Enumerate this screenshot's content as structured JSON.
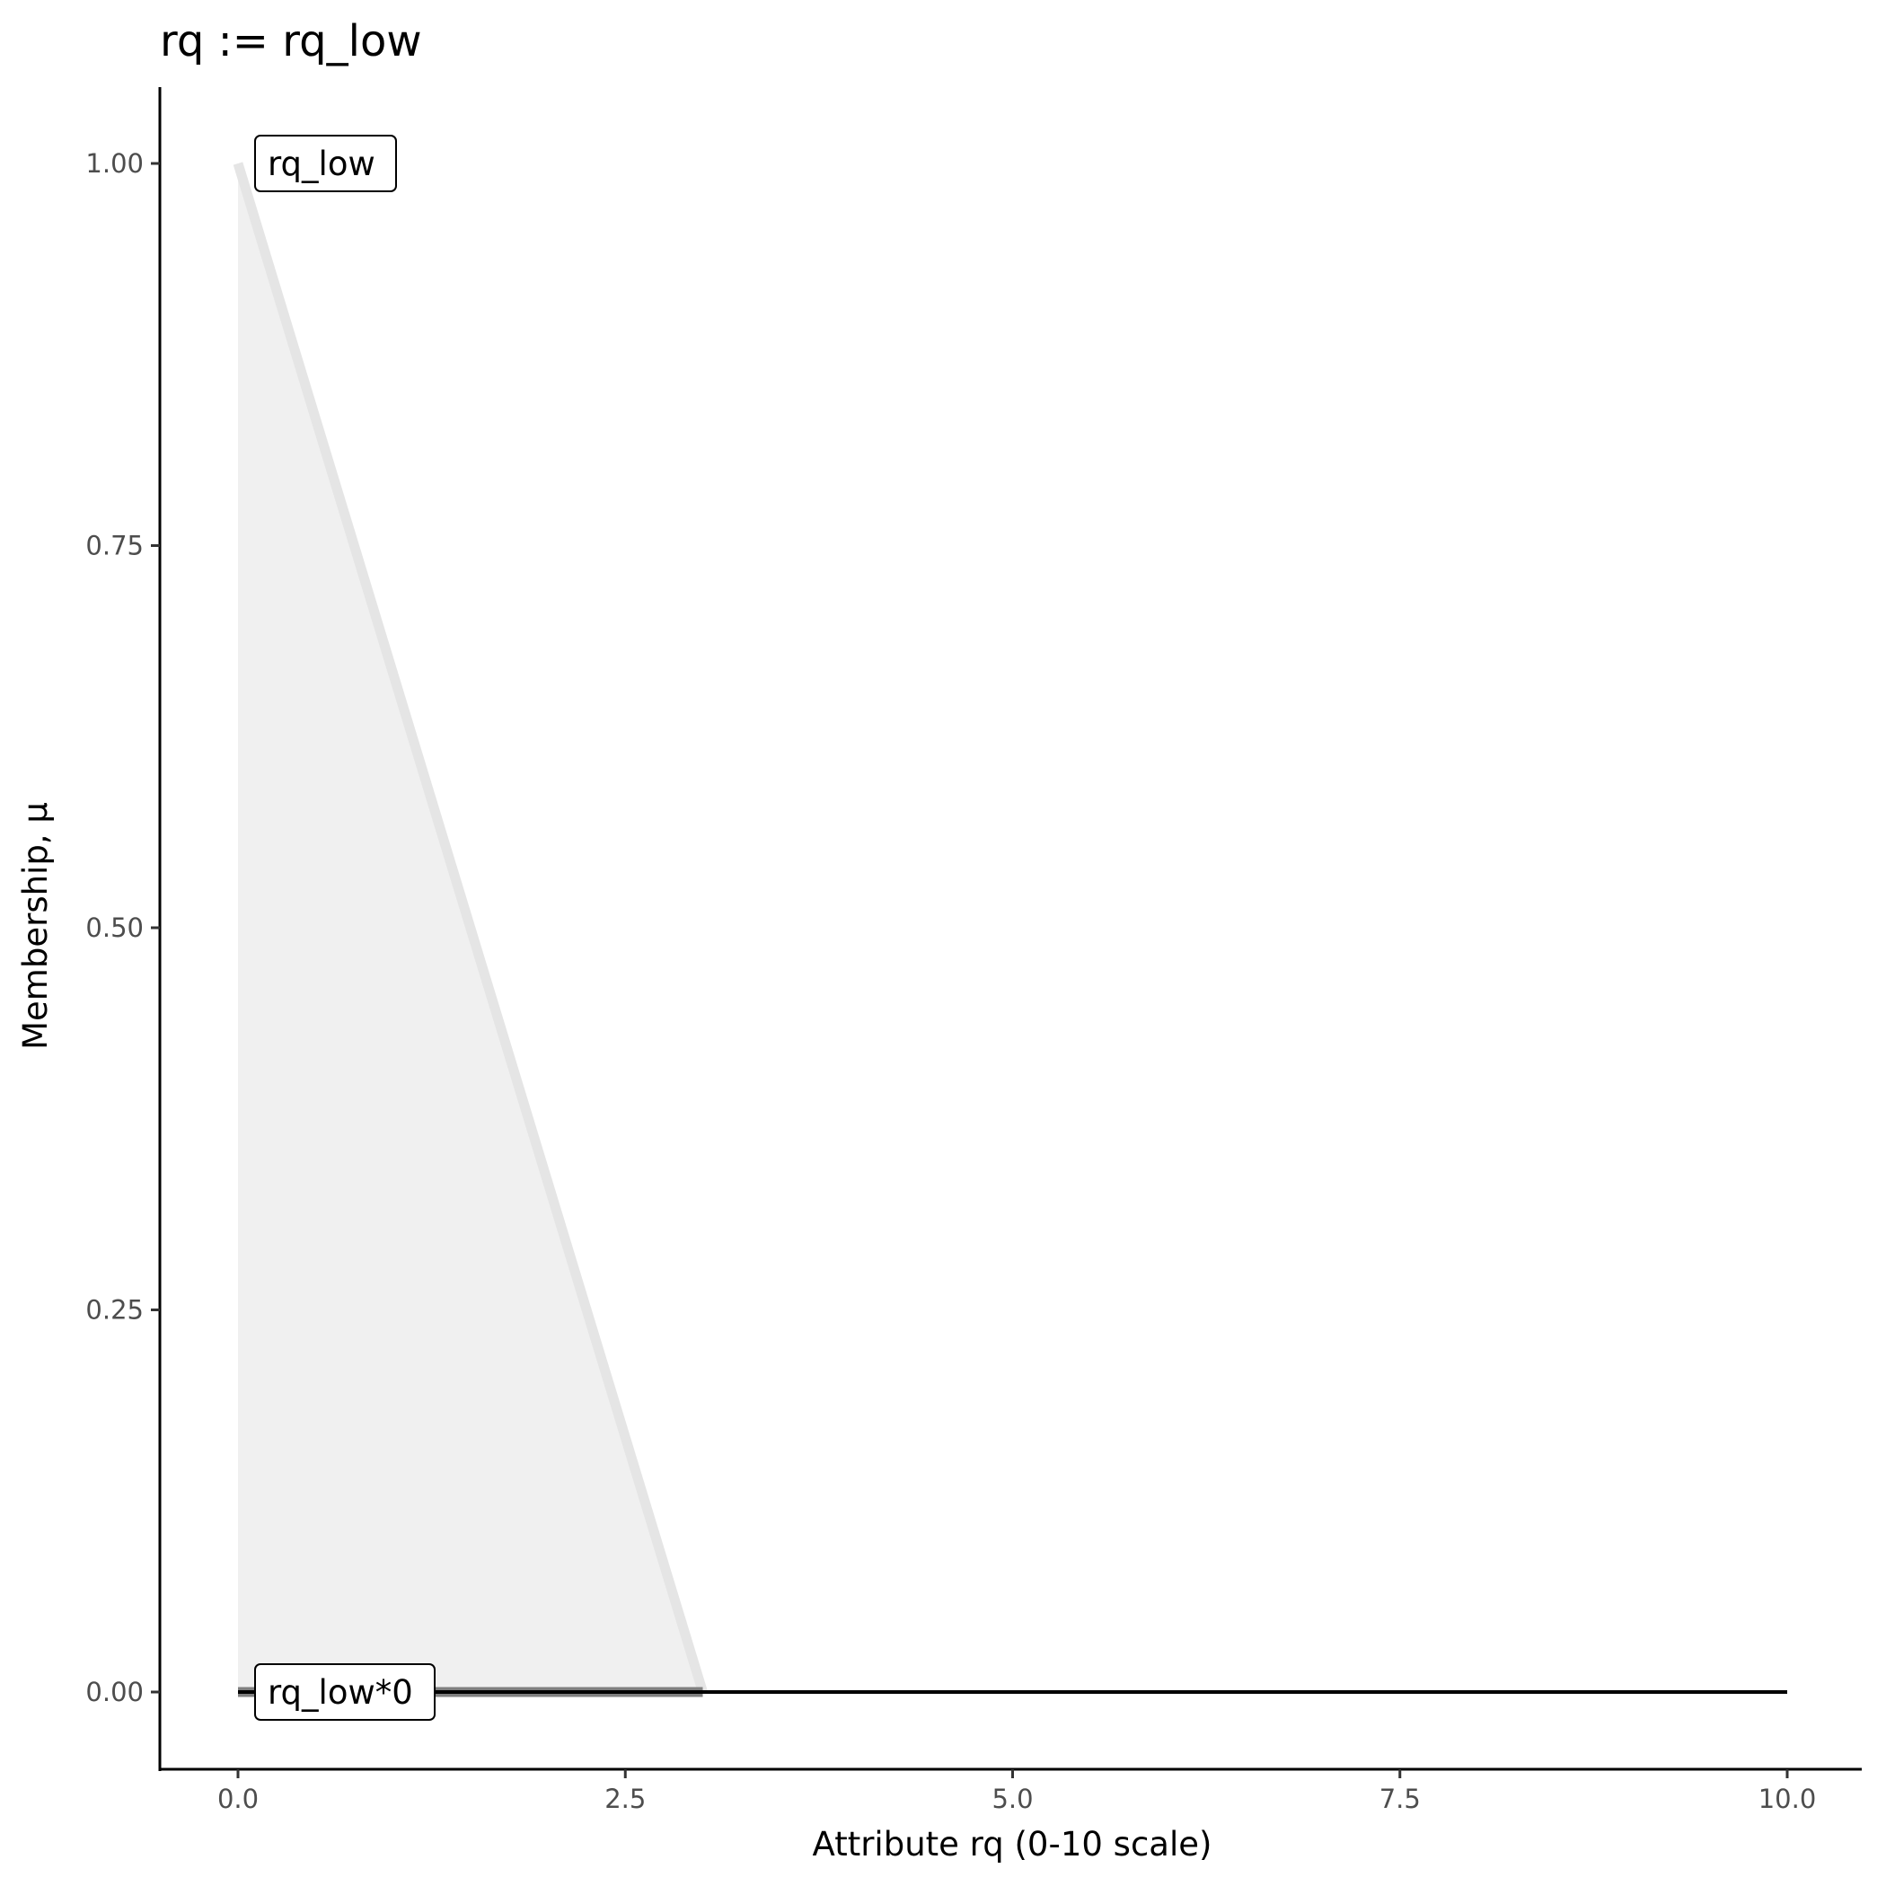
{
  "chart_data": {
    "type": "area",
    "title": "rq := rq_low",
    "xlabel": "Attribute rq (0-10 scale)",
    "ylabel": "Membership, μ",
    "xlim": [
      -0.5,
      10.5
    ],
    "ylim": [
      -0.05,
      1.05
    ],
    "xticks": [
      0,
      2.5,
      5,
      7.5,
      10
    ],
    "xtick_labels": [
      "0.0",
      "2.5",
      "5.0",
      "7.5",
      "10.0"
    ],
    "yticks": [
      0,
      0.25,
      0.5,
      0.75,
      1
    ],
    "ytick_labels": [
      "0.00",
      "0.25",
      "0.50",
      "0.75",
      "1.00"
    ],
    "grid": false,
    "series": [
      {
        "name": "rq_low",
        "x": [
          0,
          3
        ],
        "y": [
          1,
          0
        ],
        "color": "#e5e5e5",
        "fill": "#f0f0f0"
      },
      {
        "name": "rq_low*0",
        "x": [
          0,
          3
        ],
        "y": [
          0,
          0
        ],
        "color": "#7f7f7f"
      },
      {
        "x": [
          0,
          10
        ],
        "y": [
          0,
          0
        ],
        "color": "#000000"
      }
    ],
    "annotations": [
      {
        "text": "rq_low",
        "x": 0,
        "y": 1
      },
      {
        "text": "rq_low*0",
        "x": 0,
        "y": 0
      }
    ]
  }
}
